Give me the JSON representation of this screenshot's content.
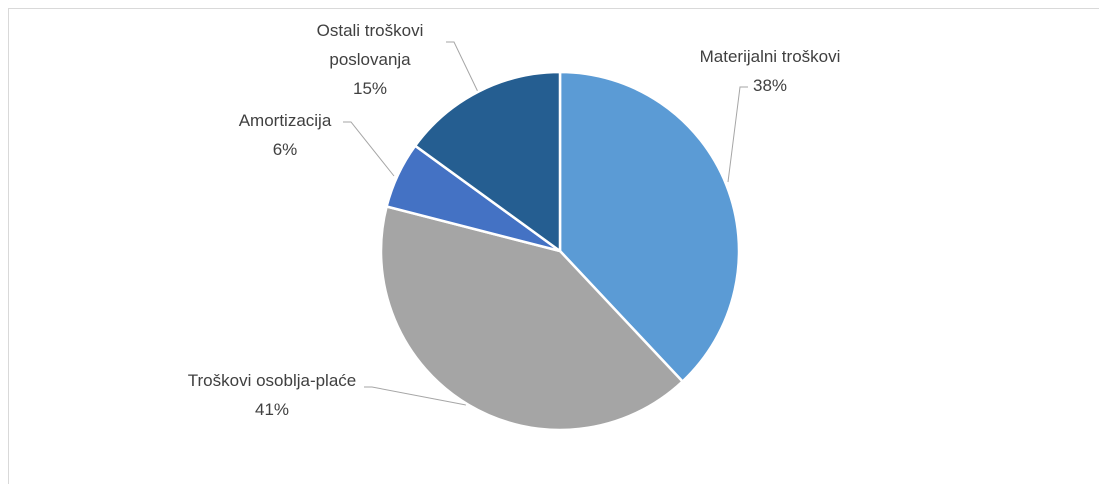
{
  "chart_data": {
    "type": "pie",
    "categories": [
      "Materijalni troškovi",
      "Troškovi osoblja-plaće",
      "Amortizacija",
      "Ostali troškovi poslovanja"
    ],
    "values": [
      38,
      41,
      6,
      15
    ],
    "value_labels": [
      "38%",
      "41%",
      "6%",
      "15%"
    ],
    "colors": [
      "#5b9bd5",
      "#a5a5a5",
      "#4472c4",
      "#255e91"
    ]
  }
}
